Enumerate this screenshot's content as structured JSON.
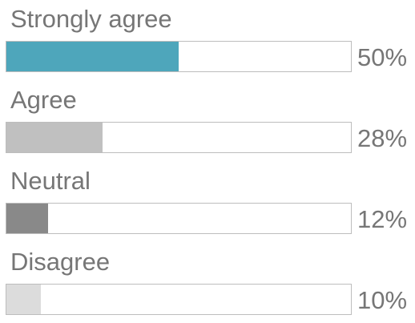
{
  "chart_data": {
    "type": "bar",
    "orientation": "horizontal",
    "categories": [
      "Strongly agree",
      "Agree",
      "Neutral",
      "Disagree"
    ],
    "values": [
      50,
      28,
      12,
      10
    ],
    "value_labels": [
      "50%",
      "28%",
      "12%",
      "10%"
    ],
    "xlim": [
      0,
      100
    ],
    "colors": [
      "#4ea6bb",
      "#c0c0c0",
      "#898989",
      "#dcdcdc"
    ],
    "grid": false,
    "legend": "none"
  }
}
